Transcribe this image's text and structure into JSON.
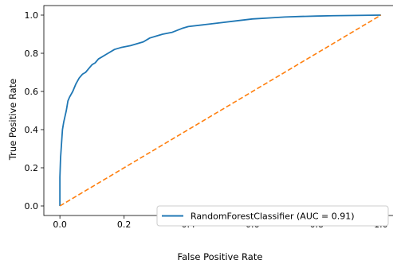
{
  "chart_data": {
    "type": "line",
    "title": "",
    "xlabel": "False Positive Rate",
    "ylabel": "True Positive Rate",
    "xlim": [
      -0.05,
      1.05
    ],
    "ylim": [
      -0.05,
      1.05
    ],
    "xticks": [
      "0.0",
      "0.2",
      "0.4",
      "0.6",
      "0.8",
      "1.0"
    ],
    "yticks": [
      "0.0",
      "0.2",
      "0.4",
      "0.6",
      "0.8",
      "1.0"
    ],
    "grid": false,
    "legend_position": "lower-right",
    "series": [
      {
        "name": "RandomForestClassifier (AUC = 0.91)",
        "color": "#1f77b4",
        "style": "solid",
        "x": [
          0.0,
          0.0,
          0.002,
          0.004,
          0.006,
          0.008,
          0.012,
          0.016,
          0.02,
          0.025,
          0.03,
          0.04,
          0.05,
          0.06,
          0.07,
          0.08,
          0.09,
          0.1,
          0.11,
          0.12,
          0.13,
          0.14,
          0.15,
          0.17,
          0.19,
          0.22,
          0.24,
          0.26,
          0.28,
          0.3,
          0.32,
          0.35,
          0.38,
          0.4,
          0.45,
          0.5,
          0.55,
          0.6,
          0.65,
          0.7,
          0.75,
          0.8,
          0.85,
          0.9,
          0.95,
          1.0
        ],
        "y": [
          0.0,
          0.15,
          0.25,
          0.3,
          0.35,
          0.4,
          0.44,
          0.47,
          0.5,
          0.55,
          0.57,
          0.6,
          0.64,
          0.67,
          0.69,
          0.7,
          0.72,
          0.74,
          0.75,
          0.77,
          0.78,
          0.79,
          0.8,
          0.82,
          0.83,
          0.84,
          0.85,
          0.86,
          0.88,
          0.89,
          0.9,
          0.91,
          0.93,
          0.94,
          0.95,
          0.96,
          0.97,
          0.98,
          0.985,
          0.99,
          0.993,
          0.995,
          0.997,
          0.998,
          0.999,
          1.0
        ]
      },
      {
        "name": "",
        "color": "#ff7f0e",
        "style": "dashed",
        "x": [
          0.0,
          1.0
        ],
        "y": [
          0.0,
          1.0
        ]
      }
    ],
    "legend_entries": [
      "RandomForestClassifier (AUC = 0.91)"
    ]
  }
}
